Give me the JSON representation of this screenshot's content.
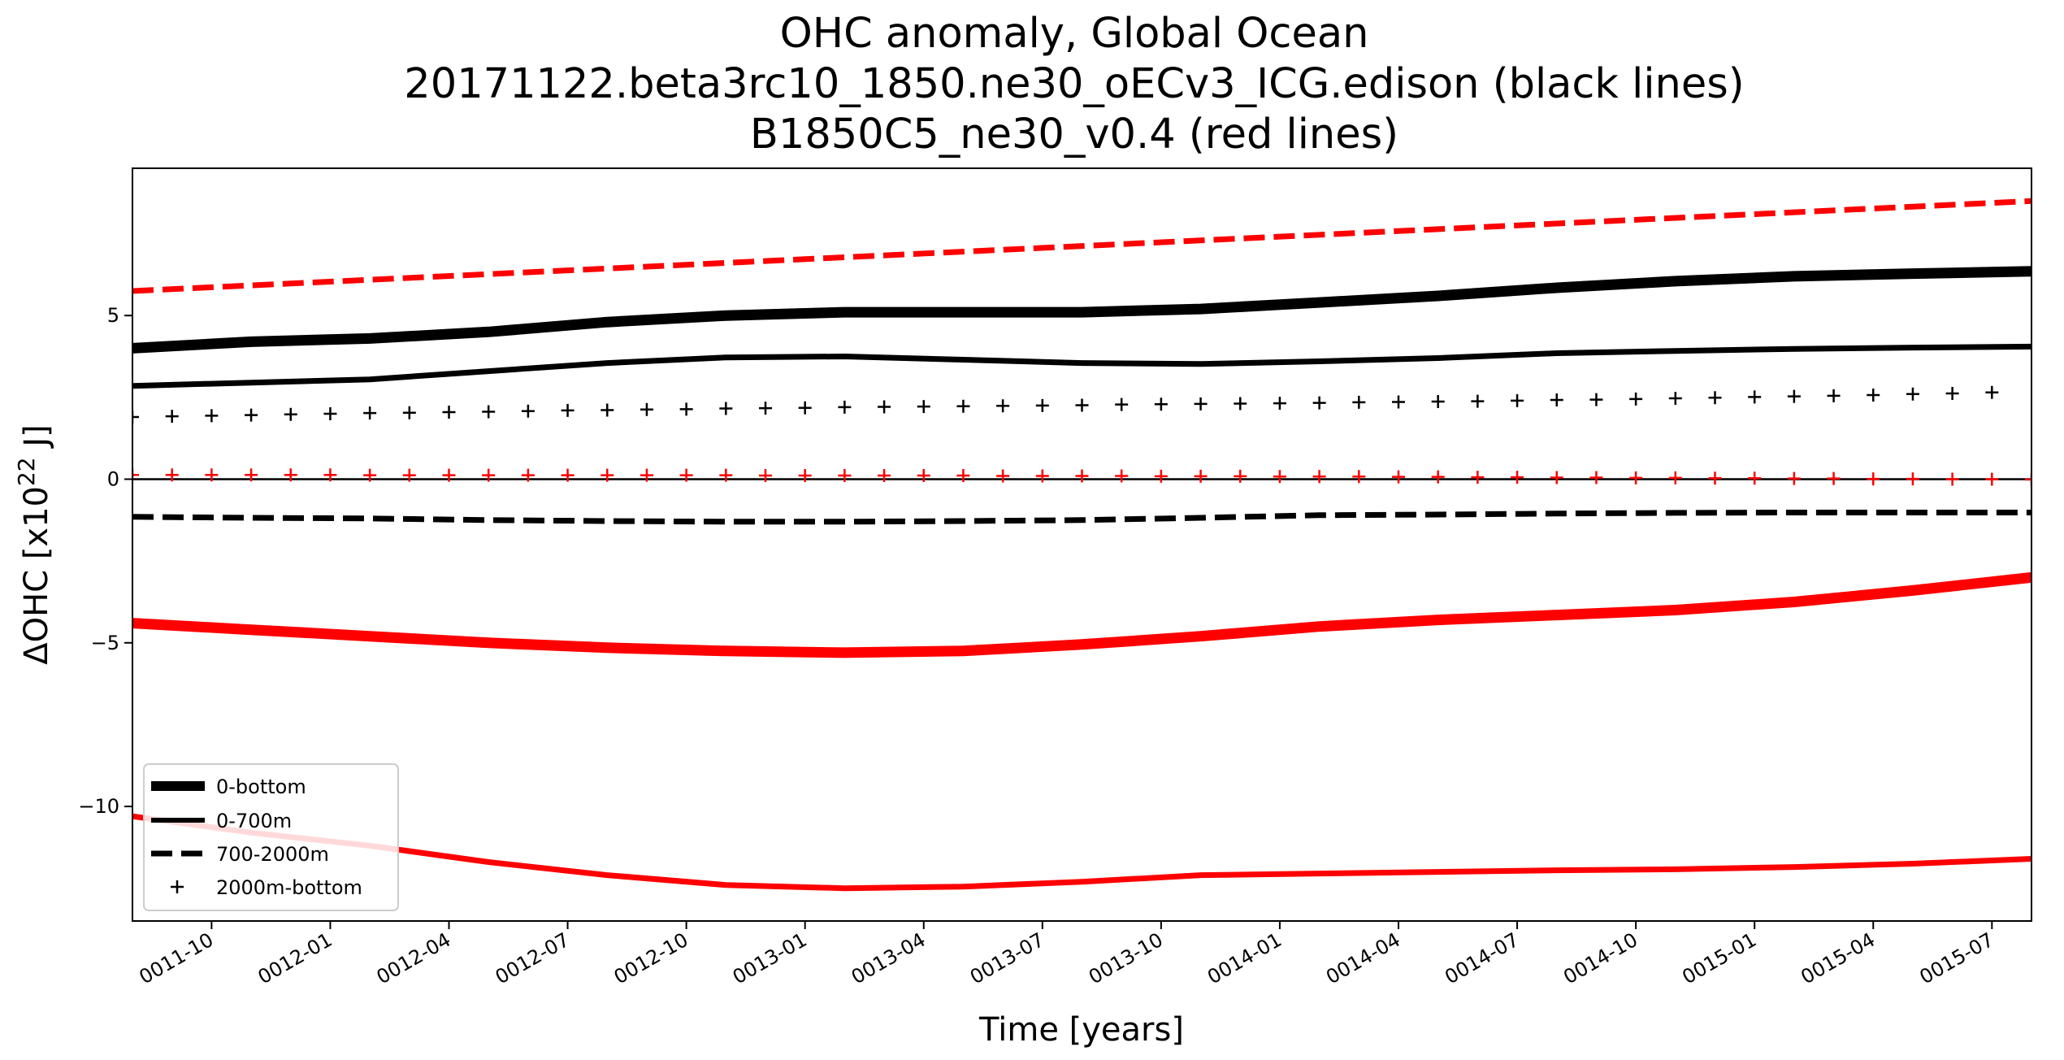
{
  "chart_data": {
    "type": "line",
    "title_lines": [
      "OHC anomaly, Global Ocean",
      "20171122.beta3rc10_1850.ne30_oECv3_ICG.edison (black lines)",
      "B1850C5_ne30_v0.4 (red lines)"
    ],
    "xlabel": "Time [years]",
    "ylabel_prefix": "ΔOHC  [x10",
    "ylabel_sup": "22",
    "ylabel_suffix": " J]",
    "x_tick_labels": [
      "0011-10",
      "0012-01",
      "0012-04",
      "0012-07",
      "0012-10",
      "0013-01",
      "0013-04",
      "0013-07",
      "0013-10",
      "0014-01",
      "0014-04",
      "0014-07",
      "0014-10",
      "0015-01",
      "0015-04",
      "0015-07"
    ],
    "y_ticks": [
      5,
      0,
      -5,
      -10
    ],
    "y_tick_labels": [
      "5",
      "0",
      "−5",
      "−10"
    ],
    "xlim_months": [
      7,
      55
    ],
    "ylim": [
      -13.5,
      9.5
    ],
    "zero_line": true,
    "legend": {
      "placement": "lower-left",
      "entries": [
        {
          "label": "0-bottom",
          "style": "thick"
        },
        {
          "label": "0-700m",
          "style": "solid"
        },
        {
          "label": "700-2000m",
          "style": "dashed"
        },
        {
          "label": "2000m-bottom",
          "style": "plus"
        }
      ]
    },
    "series": [
      {
        "group": "black",
        "style": "thick",
        "color": "#000000",
        "x": [
          7,
          10,
          13,
          16,
          19,
          22,
          25,
          28,
          31,
          34,
          37,
          40,
          43,
          46,
          49,
          52,
          55
        ],
        "values": [
          4.0,
          4.2,
          4.3,
          4.5,
          4.8,
          5.0,
          5.1,
          5.1,
          5.1,
          5.2,
          5.4,
          5.6,
          5.85,
          6.05,
          6.2,
          6.28,
          6.35
        ]
      },
      {
        "group": "black",
        "style": "solid",
        "color": "#000000",
        "x": [
          7,
          10,
          13,
          16,
          19,
          22,
          25,
          28,
          31,
          34,
          37,
          40,
          43,
          46,
          49,
          52,
          55
        ],
        "values": [
          2.85,
          2.95,
          3.05,
          3.3,
          3.55,
          3.72,
          3.75,
          3.65,
          3.55,
          3.52,
          3.6,
          3.7,
          3.85,
          3.92,
          3.98,
          4.02,
          4.05
        ]
      },
      {
        "group": "black",
        "style": "dashed",
        "color": "#000000",
        "x": [
          7,
          10,
          13,
          16,
          19,
          22,
          25,
          28,
          31,
          34,
          37,
          40,
          43,
          46,
          49,
          52,
          55
        ],
        "values": [
          -1.15,
          -1.18,
          -1.2,
          -1.25,
          -1.28,
          -1.3,
          -1.3,
          -1.28,
          -1.25,
          -1.18,
          -1.1,
          -1.08,
          -1.05,
          -1.03,
          -1.02,
          -1.02,
          -1.02
        ]
      },
      {
        "group": "black",
        "style": "plus",
        "color": "#000000",
        "x": [
          7,
          8,
          9,
          10,
          11,
          12,
          13,
          14,
          15,
          16,
          17,
          18,
          19,
          20,
          21,
          22,
          23,
          24,
          25,
          26,
          27,
          28,
          29,
          30,
          31,
          32,
          33,
          34,
          35,
          36,
          37,
          38,
          39,
          40,
          41,
          42,
          43,
          44,
          45,
          46,
          47,
          48,
          49,
          50,
          51,
          52,
          53,
          54
        ],
        "values": [
          1.9,
          1.92,
          1.94,
          1.96,
          1.98,
          2.0,
          2.02,
          2.03,
          2.05,
          2.06,
          2.08,
          2.1,
          2.11,
          2.13,
          2.14,
          2.16,
          2.17,
          2.18,
          2.2,
          2.21,
          2.22,
          2.23,
          2.24,
          2.25,
          2.26,
          2.28,
          2.29,
          2.3,
          2.31,
          2.32,
          2.33,
          2.35,
          2.36,
          2.37,
          2.38,
          2.4,
          2.42,
          2.43,
          2.45,
          2.47,
          2.49,
          2.51,
          2.53,
          2.55,
          2.57,
          2.6,
          2.62,
          2.65
        ]
      },
      {
        "group": "red",
        "style": "dashed",
        "color": "#ff0000",
        "x": [
          7,
          55
        ],
        "values": [
          5.75,
          8.5
        ]
      },
      {
        "group": "red",
        "style": "thick",
        "color": "#ff0000",
        "x": [
          7,
          10,
          13,
          16,
          19,
          22,
          25,
          28,
          31,
          34,
          37,
          40,
          43,
          46,
          49,
          52,
          55
        ],
        "values": [
          -4.4,
          -4.6,
          -4.8,
          -5.0,
          -5.15,
          -5.25,
          -5.3,
          -5.25,
          -5.05,
          -4.8,
          -4.5,
          -4.3,
          -4.15,
          -4.0,
          -3.75,
          -3.4,
          -3.0
        ]
      },
      {
        "group": "red",
        "style": "solid",
        "color": "#ff0000",
        "x": [
          7,
          10,
          13,
          16,
          19,
          22,
          25,
          28,
          31,
          34,
          37,
          40,
          43,
          46,
          49,
          52,
          55
        ],
        "values": [
          -10.3,
          -10.8,
          -11.2,
          -11.7,
          -12.1,
          -12.4,
          -12.5,
          -12.45,
          -12.3,
          -12.1,
          -12.05,
          -12.0,
          -11.95,
          -11.92,
          -11.85,
          -11.75,
          -11.6
        ]
      },
      {
        "group": "red",
        "style": "plus",
        "color": "#ff0000",
        "x": [
          7,
          8,
          9,
          10,
          11,
          12,
          13,
          14,
          15,
          16,
          17,
          18,
          19,
          20,
          21,
          22,
          23,
          24,
          25,
          26,
          27,
          28,
          29,
          30,
          31,
          32,
          33,
          34,
          35,
          36,
          37,
          38,
          39,
          40,
          41,
          42,
          43,
          44,
          45,
          46,
          47,
          48,
          49,
          50,
          51,
          52,
          53,
          54,
          55
        ],
        "values": [
          0.13,
          0.13,
          0.13,
          0.13,
          0.13,
          0.13,
          0.12,
          0.12,
          0.12,
          0.12,
          0.12,
          0.12,
          0.12,
          0.12,
          0.12,
          0.12,
          0.11,
          0.11,
          0.11,
          0.11,
          0.11,
          0.11,
          0.1,
          0.1,
          0.1,
          0.1,
          0.09,
          0.09,
          0.09,
          0.08,
          0.08,
          0.08,
          0.07,
          0.07,
          0.06,
          0.06,
          0.05,
          0.05,
          0.04,
          0.04,
          0.03,
          0.03,
          0.02,
          0.02,
          0.01,
          0.01,
          0.0,
          0.0,
          -0.01
        ]
      }
    ]
  }
}
